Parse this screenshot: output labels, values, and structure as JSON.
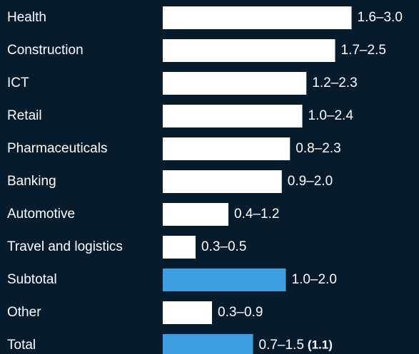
{
  "chart_data": {
    "type": "bar",
    "orientation": "horizontal",
    "categories": [
      "Health",
      "Construction",
      "ICT",
      "Retail",
      "Pharmaceuticals",
      "Banking",
      "Automotive",
      "Travel and logistics",
      "Subtotal",
      "Other",
      "Total"
    ],
    "values": [
      2.3,
      2.1,
      1.75,
      1.7,
      1.55,
      1.45,
      0.8,
      0.4,
      1.5,
      0.6,
      1.1
    ],
    "value_labels": [
      "1.6–3.0",
      "1.7–2.5",
      "1.2–2.3",
      "1.0–2.4",
      "0.8–2.3",
      "0.9–2.0",
      "0.4–1.2",
      "0.3–0.5",
      "1.0–2.0",
      "0.3–0.9",
      "0.7–1.5"
    ],
    "colors": [
      "#ffffff",
      "#ffffff",
      "#ffffff",
      "#ffffff",
      "#ffffff",
      "#ffffff",
      "#ffffff",
      "#ffffff",
      "#3d9fe0",
      "#ffffff",
      "#3d9fe0"
    ],
    "annotations": [
      {
        "text": "(1.1)",
        "category": 10
      }
    ],
    "xlim": [
      0,
      3
    ]
  }
}
